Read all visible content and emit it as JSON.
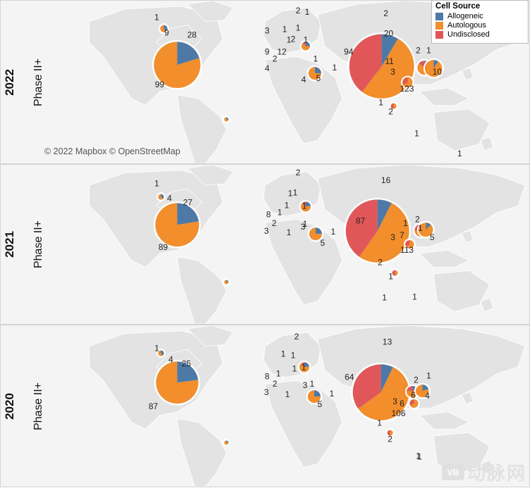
{
  "legend": {
    "title": "Cell Source",
    "items": [
      {
        "label": "Allogeneic",
        "color": "#4e79a7"
      },
      {
        "label": "Autologous",
        "color": "#f28e2b"
      },
      {
        "label": "Undisclosed",
        "color": "#e15759"
      }
    ]
  },
  "attribution": "© 2022 Mapbox © OpenStreetMap",
  "watermark": {
    "logo": "VB",
    "text": "动脉网"
  },
  "panels": [
    {
      "year": "2022",
      "phase": "Phase II+",
      "labels": [
        "1",
        "9",
        "28",
        "99",
        "2",
        "1",
        "3",
        "1",
        "1",
        "2",
        "1",
        "1",
        "9",
        "12",
        "4",
        "2",
        "1",
        "4",
        "5",
        "1",
        "2",
        "20",
        "94",
        "3",
        "11",
        "2",
        "1",
        "10",
        "123",
        "1",
        "2",
        "1",
        "1"
      ],
      "bubbles": [
        {
          "values": [
            10,
            18,
            0
          ]
        },
        {
          "values": [
            20,
            79,
            0
          ]
        },
        {
          "values": [
            1,
            2,
            0
          ]
        },
        {
          "values": [
            2,
            5,
            1
          ]
        },
        {
          "values": [
            1,
            3,
            0
          ]
        },
        {
          "values": [
            2,
            2,
            0
          ]
        },
        {
          "values": [
            20,
            123,
            94
          ]
        },
        {
          "values": [
            1,
            11,
            2
          ]
        },
        {
          "values": [
            1,
            10,
            0
          ]
        },
        {
          "values": [
            0,
            2,
            1
          ]
        },
        {
          "values": [
            0,
            1,
            1
          ]
        }
      ]
    },
    {
      "year": "2021",
      "phase": "Phase II+",
      "labels": [
        "1",
        "4",
        "27",
        "89",
        "2",
        "1",
        "1",
        "1",
        "8",
        "1",
        "2",
        "1",
        "3",
        "1",
        "3",
        "1",
        "5",
        "1",
        "16",
        "87",
        "3",
        "2",
        "1",
        "7",
        "5",
        "113",
        "1",
        "2",
        "1",
        "1",
        "1"
      ],
      "bubbles": [
        {
          "values": [
            10,
            17,
            0
          ]
        },
        {
          "values": [
            20,
            69,
            0
          ]
        },
        {
          "values": [
            1,
            3,
            0
          ]
        },
        {
          "values": [
            2,
            6,
            1
          ]
        },
        {
          "values": [
            1,
            3,
            0
          ]
        },
        {
          "values": [
            2,
            3,
            0
          ]
        },
        {
          "values": [
            16,
            113,
            87
          ]
        },
        {
          "values": [
            1,
            5,
            2
          ]
        },
        {
          "values": [
            1,
            7,
            0
          ]
        },
        {
          "values": [
            0,
            2,
            1
          ]
        },
        {
          "values": [
            0,
            1,
            1
          ]
        }
      ]
    },
    {
      "year": "2020",
      "phase": "Phase II+",
      "labels": [
        "1",
        "4",
        "25",
        "87",
        "2",
        "1",
        "1",
        "1",
        "8",
        "1",
        "2",
        "1",
        "3",
        "1",
        "3",
        "1",
        "5",
        "1",
        "13",
        "64",
        "3",
        "6",
        "106",
        "2",
        "1",
        "6",
        "4",
        "1",
        "2",
        "1",
        "1"
      ],
      "bubbles": [
        {
          "values": [
            10,
            15,
            0
          ]
        },
        {
          "values": [
            20,
            67,
            0
          ]
        },
        {
          "values": [
            1,
            3,
            0
          ]
        },
        {
          "values": [
            2,
            6,
            1
          ]
        },
        {
          "values": [
            1,
            3,
            0
          ]
        },
        {
          "values": [
            2,
            3,
            0
          ]
        },
        {
          "values": [
            13,
            106,
            64
          ]
        },
        {
          "values": [
            1,
            6,
            2
          ]
        },
        {
          "values": [
            1,
            4,
            0
          ]
        },
        {
          "values": [
            0,
            2,
            1
          ]
        },
        {
          "values": [
            0,
            1,
            1
          ]
        }
      ]
    }
  ]
}
